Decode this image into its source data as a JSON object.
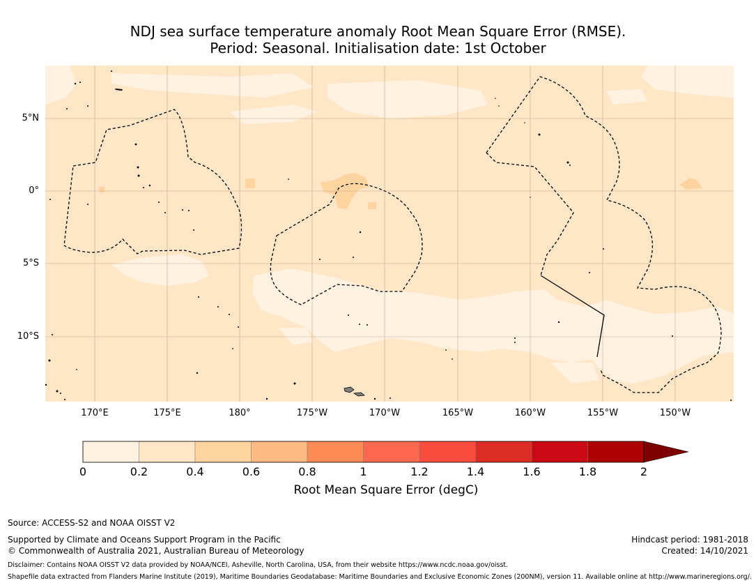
{
  "title": {
    "line1": "NDJ sea surface temperature anomaly Root Mean Square Error (RMSE).",
    "line2": "Period: Seasonal. Initialisation date: 1st October"
  },
  "map": {
    "latitude_labels": [
      "5°N",
      "0°",
      "5°S",
      "10°S"
    ],
    "longitude_labels": [
      "170°E",
      "175°E",
      "180°",
      "175°W",
      "170°W",
      "165°W",
      "160°W",
      "155°W",
      "150°W"
    ],
    "colors": {
      "ocean_0_0.2": "#fff2e0",
      "ocean_0.2_0.4": "#fee6c7",
      "ocean_0.4_0.6": "#fdd49f",
      "grid_line": "#b09a80",
      "eez_boundary": "#000000",
      "land": "#808080"
    }
  },
  "colorbar": {
    "label": "Root Mean Square Error (degC)",
    "ticks": [
      "0",
      "0.2",
      "0.4",
      "0.6",
      "0.8",
      "1",
      "1.2",
      "1.4",
      "1.6",
      "1.8",
      "2"
    ],
    "bins": [
      {
        "from": 0.0,
        "to": 0.2,
        "color": "#fff2e0"
      },
      {
        "from": 0.2,
        "to": 0.4,
        "color": "#fee6c7"
      },
      {
        "from": 0.4,
        "to": 0.6,
        "color": "#fdd49f"
      },
      {
        "from": 0.6,
        "to": 0.8,
        "color": "#fdba82"
      },
      {
        "from": 0.8,
        "to": 1.0,
        "color": "#fc8b55"
      },
      {
        "from": 1.0,
        "to": 1.2,
        "color": "#fd684e"
      },
      {
        "from": 1.2,
        "to": 1.4,
        "color": "#fb4d3e"
      },
      {
        "from": 1.4,
        "to": 1.6,
        "color": "#dd2c24"
      },
      {
        "from": 1.6,
        "to": 1.8,
        "color": "#c90a15"
      },
      {
        "from": 1.8,
        "to": 2.0,
        "color": "#ae0000"
      }
    ],
    "extend_color": "#7f0000"
  },
  "footer": {
    "source": "Source: ACCESS-S2 and NOAA OISST V2",
    "supported": "Supported by Climate and Oceans Support Program in the Pacific",
    "copyright": "© Commonwealth of Australia 2021, Australian Bureau of Meteorology",
    "hindcast": "Hindcast period: 1981-2018",
    "created": "Created: 14/10/2021",
    "disclaimer": "Disclaimer: Contains NOAA OISST V2 data provided by NOAA/NCEI, Asheville, North Carolina, USA, from their website https://www.ncdc.noaa.gov/oisst.",
    "shapefile": "Shapefile data extracted from Flanders Marine Institute (2019), Maritime Boundaries Geodatabase: Maritime Boundaries and Exclusive Economic Zones (200NM), version 11. Available online at http://www.marineregions.org/."
  }
}
